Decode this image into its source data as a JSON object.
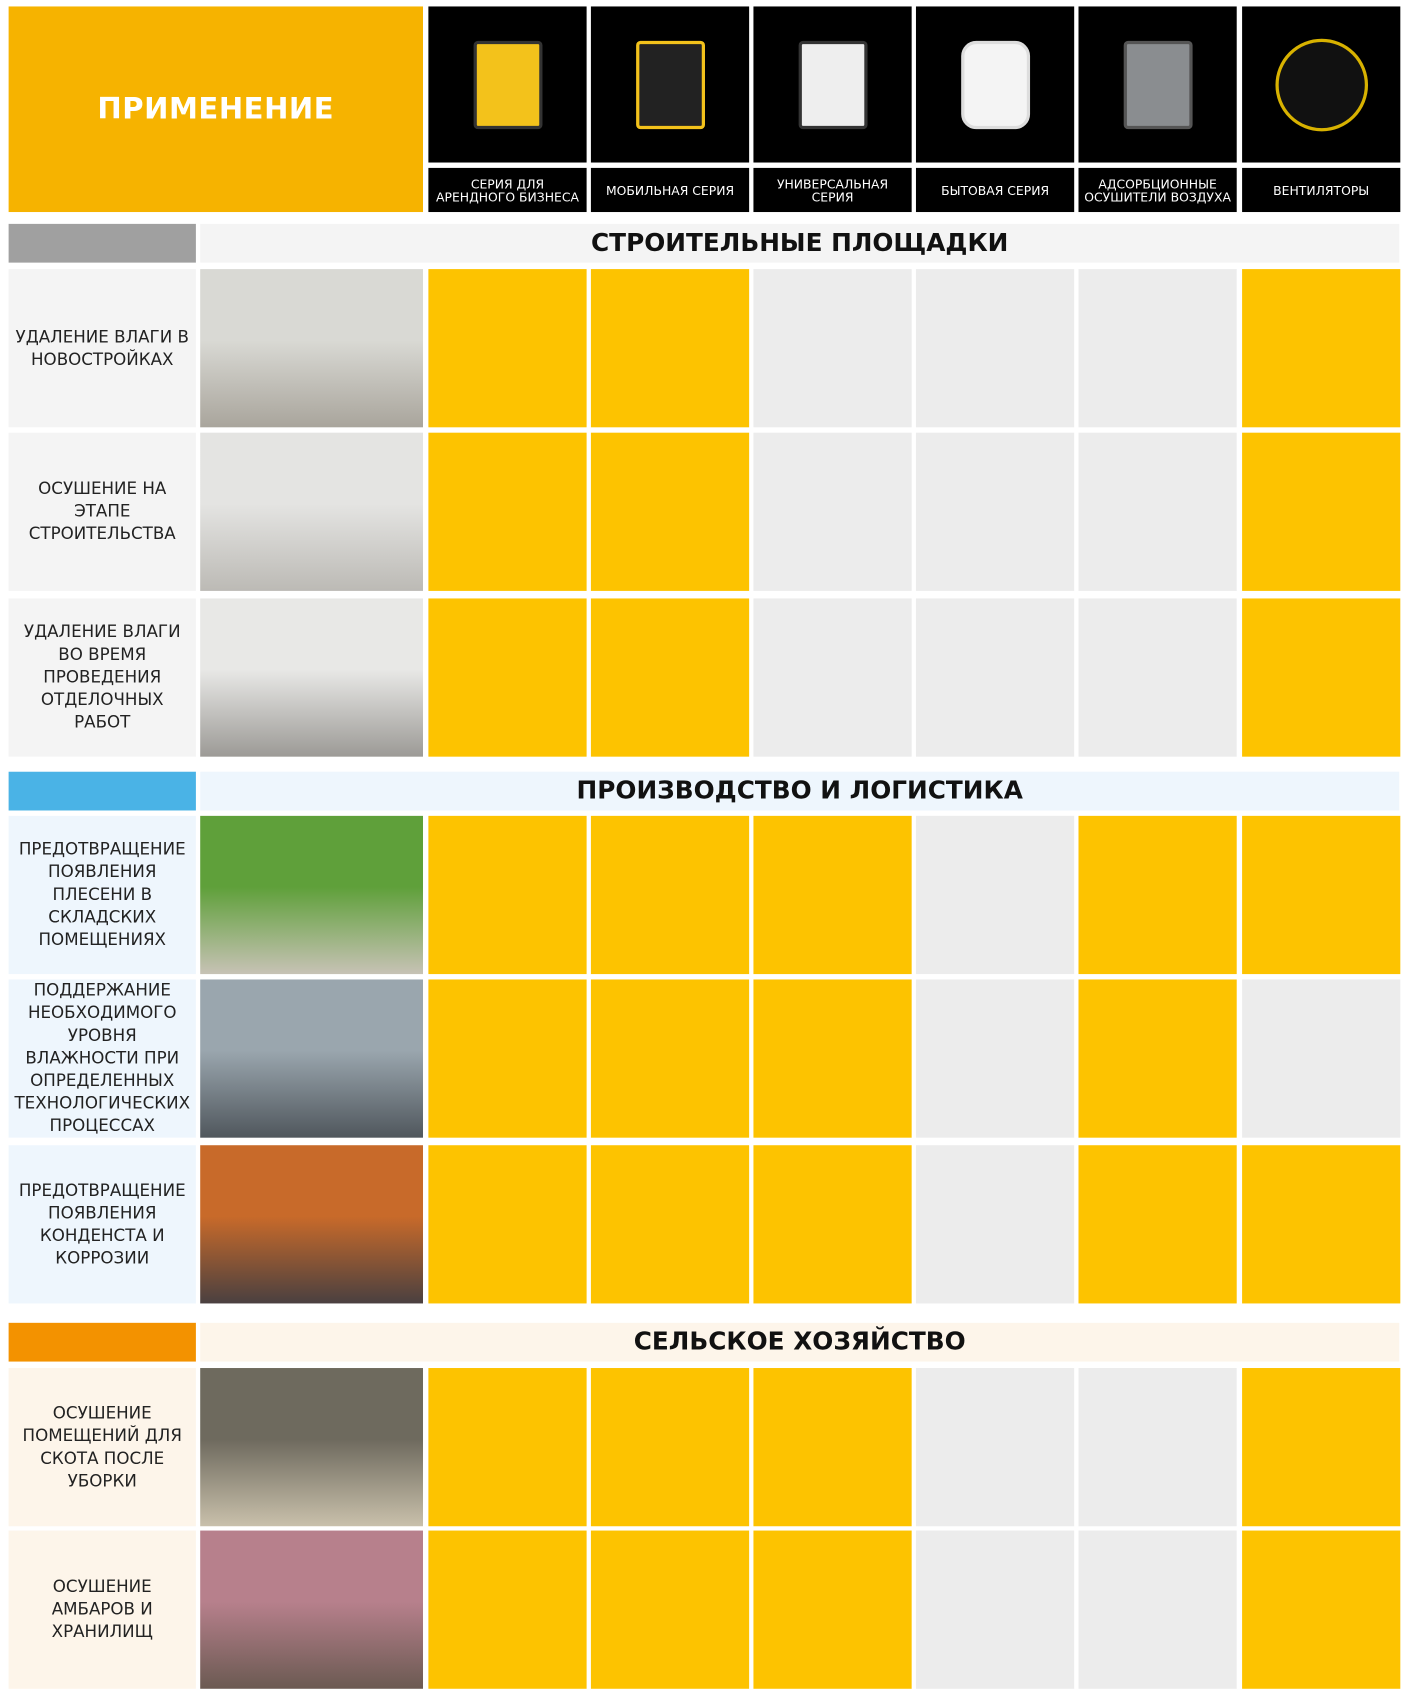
{
  "header": {
    "title": "ПРИМЕНЕНИЕ",
    "products": [
      "СЕРИЯ ДЛЯ АРЕНДНОГО БИЗНЕСА",
      "МОБИЛЬНАЯ СЕРИЯ",
      "УНИВЕРСАЛЬНАЯ СЕРИЯ",
      "БЫТОВАЯ СЕРИЯ",
      "АДСОРБЦИОННЫЕ ОСУШИТЕЛИ ВОЗДУХА",
      "ВЕНТИЛЯТОРЫ"
    ]
  },
  "applicable_color": "#fdc300",
  "not_applicable_color": "#ececec",
  "sections": [
    {
      "title": "СТРОИТЕЛЬНЫЕ ПЛОЩАДКИ",
      "color": "#a0a0a0",
      "background": "#f4f4f4",
      "rows": [
        {
          "label": "УДАЛЕНИЕ ВЛАГИ В НОВОСТРОЙКАХ",
          "applicable": [
            true,
            true,
            false,
            false,
            false,
            true
          ]
        },
        {
          "label": "ОСУШЕНИЕ НА ЭТАПЕ СТРОИТЕЛЬСТВА",
          "applicable": [
            true,
            true,
            false,
            false,
            false,
            true
          ]
        },
        {
          "label": "УДАЛЕНИЕ ВЛАГИ ВО ВРЕМЯ ПРОВЕДЕНИЯ ОТДЕЛОЧНЫХ РАБОТ",
          "applicable": [
            true,
            true,
            false,
            false,
            false,
            true
          ]
        }
      ]
    },
    {
      "title": "ПРОИЗВОДСТВО И ЛОГИСТИКА",
      "color": "#4ab3e6",
      "background": "#eef6fd",
      "rows": [
        {
          "label": "ПРЕДОТВРАЩЕНИЕ ПОЯВЛЕНИЯ ПЛЕСЕНИ В СКЛАДСКИХ ПОМЕЩЕНИЯХ",
          "applicable": [
            true,
            true,
            true,
            false,
            true,
            true
          ]
        },
        {
          "label": "ПОДДЕРЖАНИЕ НЕОБХОДИМОГО УРОВНЯ ВЛАЖНОСТИ ПРИ ОПРЕДЕЛЕННЫХ ТЕХНОЛОГИЧЕСКИХ ПРОЦЕССАХ",
          "applicable": [
            true,
            true,
            true,
            false,
            true,
            false
          ]
        },
        {
          "label": "ПРЕДОТВРАЩЕНИЕ ПОЯВЛЕНИЯ КОНДЕНСТА И КОРРОЗИИ",
          "applicable": [
            true,
            true,
            true,
            false,
            true,
            true
          ]
        }
      ]
    },
    {
      "title": "СЕЛЬСКОЕ ХОЗЯЙСТВО",
      "color": "#f39200",
      "background": "#fdf5ea",
      "rows": [
        {
          "label": "ОСУШЕНИЕ ПОМЕЩЕНИЙ ДЛЯ СКОТА ПОСЛЕ УБОРКИ",
          "applicable": [
            true,
            true,
            true,
            false,
            false,
            true
          ]
        },
        {
          "label": "ОСУШЕНИЕ АМБАРОВ И ХРАНИЛИЩ",
          "applicable": [
            true,
            true,
            true,
            false,
            false,
            true
          ]
        }
      ]
    }
  ]
}
